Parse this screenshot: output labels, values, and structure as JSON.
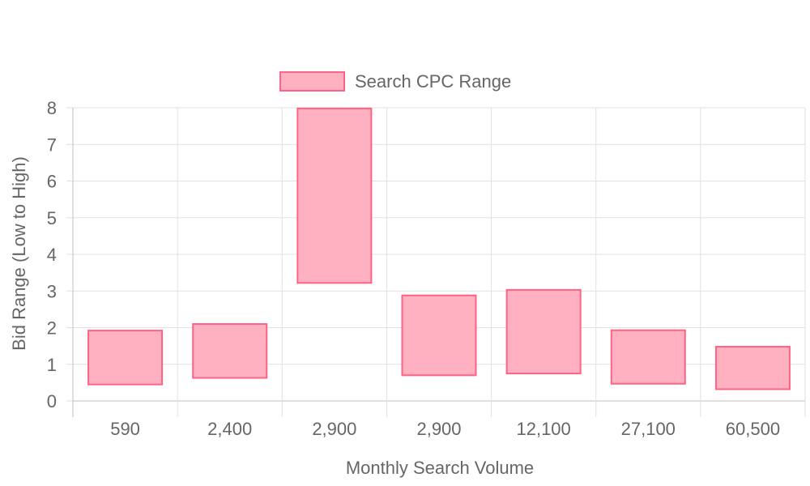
{
  "chart_data": {
    "type": "bar",
    "subtype": "floating-range",
    "categories": [
      "590",
      "2,400",
      "2,900",
      "2,900",
      "12,100",
      "27,100",
      "60,500"
    ],
    "series": [
      {
        "name": "Search CPC Range",
        "ranges": [
          [
            0.45,
            1.92
          ],
          [
            0.63,
            2.1
          ],
          [
            3.22,
            7.98
          ],
          [
            0.7,
            2.88
          ],
          [
            0.75,
            3.03
          ],
          [
            0.47,
            1.93
          ],
          [
            0.32,
            1.48
          ]
        ],
        "fill_color": "#ffb1c1",
        "border_color": "#ff6384"
      }
    ],
    "xlabel": "Monthly Search Volume",
    "ylabel": "Bid Range (Low to High)",
    "ylim": [
      0,
      8
    ],
    "yticks": [
      0,
      1,
      2,
      3,
      4,
      5,
      6,
      7,
      8
    ],
    "grid": true,
    "legend_position": "top"
  }
}
